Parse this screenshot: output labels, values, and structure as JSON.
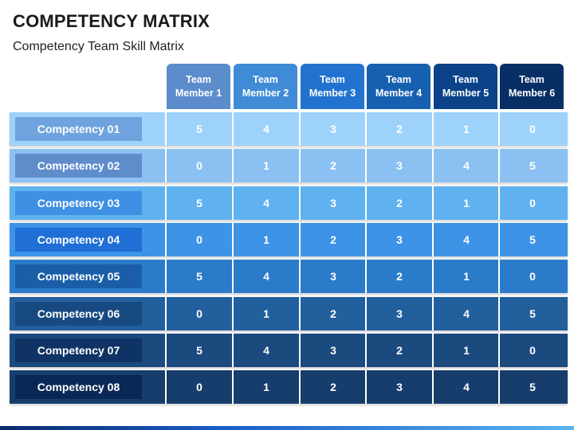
{
  "title": "COMPETENCY MATRIX",
  "subtitle": "Competency Team Skill Matrix",
  "headers": [
    {
      "line1": "Team",
      "line2": "Member 1",
      "color": "#5b8ccc"
    },
    {
      "line1": "Team",
      "line2": "Member 2",
      "color": "#3f8bd6"
    },
    {
      "line1": "Team",
      "line2": "Member 3",
      "color": "#2273cf"
    },
    {
      "line1": "Team",
      "line2": "Member 4",
      "color": "#1760b0"
    },
    {
      "line1": "Team",
      "line2": "Member 5",
      "color": "#0b4288"
    },
    {
      "line1": "Team",
      "line2": "Member 6",
      "color": "#072f66"
    }
  ],
  "rows": [
    {
      "label": "Competency 01",
      "values": [
        "5",
        "4",
        "3",
        "2",
        "1",
        "0"
      ],
      "band": "#9dd3fb",
      "chip": "#6fa3de"
    },
    {
      "label": "Competency 02",
      "values": [
        "0",
        "1",
        "2",
        "3",
        "4",
        "5"
      ],
      "band": "#8bc0f2",
      "chip": "#5f8dcc"
    },
    {
      "label": "Competency 03",
      "values": [
        "5",
        "4",
        "3",
        "2",
        "1",
        "0"
      ],
      "band": "#5fb2ef",
      "chip": "#3e90e2"
    },
    {
      "label": "Competency 04",
      "values": [
        "0",
        "1",
        "2",
        "3",
        "4",
        "5"
      ],
      "band": "#3d93e6",
      "chip": "#1f6fd6"
    },
    {
      "label": "Competency 05",
      "values": [
        "5",
        "4",
        "3",
        "2",
        "1",
        "0"
      ],
      "band": "#2a7bc9",
      "chip": "#1a5ea8"
    },
    {
      "label": "Competency 06",
      "values": [
        "0",
        "1",
        "2",
        "3",
        "4",
        "5"
      ],
      "band": "#22609d",
      "chip": "#184a82"
    },
    {
      "label": "Competency 07",
      "values": [
        "5",
        "4",
        "3",
        "2",
        "1",
        "0"
      ],
      "band": "#1b4a7f",
      "chip": "#0f3364"
    },
    {
      "label": "Competency 08",
      "values": [
        "0",
        "1",
        "2",
        "3",
        "4",
        "5"
      ],
      "band": "#163d6b",
      "chip": "#0a2855"
    }
  ]
}
